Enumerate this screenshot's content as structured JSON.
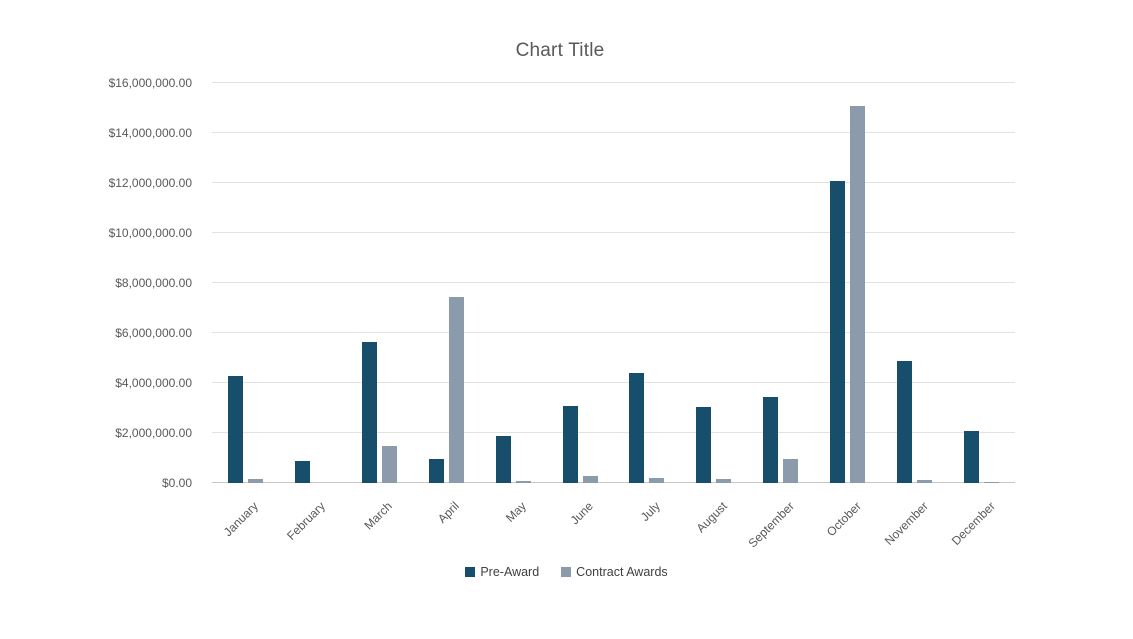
{
  "title": "Chart Title",
  "colors": {
    "pre_award": "#174E6B",
    "contract_awards": "#8C9BAC",
    "gridline": "#E2E2E2",
    "baseline": "#C6C6C6",
    "text": "#595959",
    "legend_text": "#404040"
  },
  "chart_data": {
    "type": "bar",
    "title": "Chart Title",
    "categories": [
      "January",
      "February",
      "March",
      "April",
      "May",
      "June",
      "July",
      "August",
      "September",
      "October",
      "November",
      "December"
    ],
    "series": [
      {
        "name": "Pre-Award",
        "color": "#174E6B",
        "values": [
          4300000,
          900000,
          5650000,
          950000,
          1900000,
          3100000,
          4400000,
          3050000,
          3450000,
          12100000,
          4900000,
          2100000
        ]
      },
      {
        "name": "Contract Awards",
        "color": "#8C9BAC",
        "values": [
          150000,
          0,
          1500000,
          7450000,
          70000,
          300000,
          220000,
          160000,
          950000,
          15100000,
          110000,
          50000
        ]
      }
    ],
    "xlabel": "",
    "ylabel": "",
    "ylim": [
      0,
      16000000
    ],
    "ytick_step": 2000000,
    "ytick_labels": [
      "$0.00",
      "$2,000,000.00",
      "$4,000,000.00",
      "$6,000,000.00",
      "$8,000,000.00",
      "$10,000,000.00",
      "$12,000,000.00",
      "$14,000,000.00",
      "$16,000,000.00"
    ],
    "grid": true,
    "legend_position": "bottom"
  }
}
